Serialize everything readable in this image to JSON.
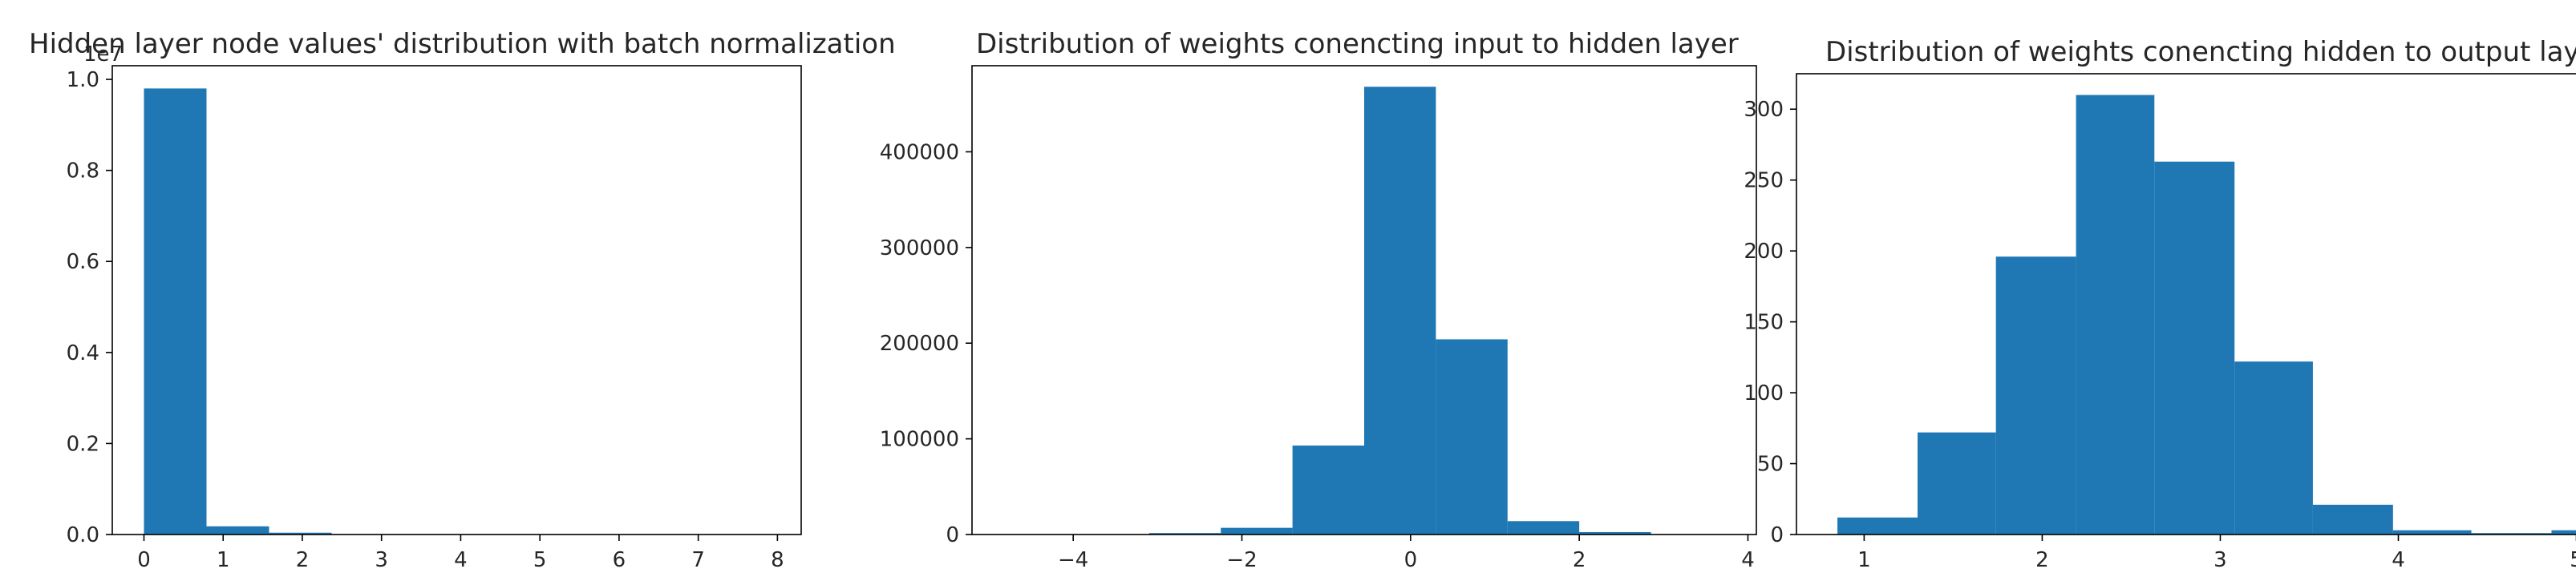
{
  "chart_data": [
    {
      "type": "bar",
      "title": "Hidden layer node values' distribution with batch normalization",
      "xlabel": "",
      "ylabel": "",
      "scale_label": "1e7",
      "bins": [
        {
          "x0": 0.0,
          "x1": 0.79,
          "value": 0.98
        },
        {
          "x0": 0.79,
          "x1": 1.58,
          "value": 0.018
        },
        {
          "x0": 1.58,
          "x1": 2.37,
          "value": 0.004
        },
        {
          "x0": 2.37,
          "x1": 3.16,
          "value": 0.001
        },
        {
          "x0": 3.16,
          "x1": 3.95,
          "value": 0.0005
        },
        {
          "x0": 3.95,
          "x1": 4.74,
          "value": 0.0002
        },
        {
          "x0": 4.74,
          "x1": 5.53,
          "value": 0.0001
        },
        {
          "x0": 5.53,
          "x1": 6.32,
          "value": 0.0001
        },
        {
          "x0": 6.32,
          "x1": 7.11,
          "value": 5e-05
        },
        {
          "x0": 7.11,
          "x1": 7.9,
          "value": 3e-05
        }
      ],
      "xlim": [
        -0.4,
        8.3
      ],
      "ylim": [
        0,
        1.03
      ],
      "xticks": [
        0,
        1,
        2,
        3,
        4,
        5,
        6,
        7,
        8
      ],
      "yticks": [
        0.0,
        0.2,
        0.4,
        0.6,
        0.8,
        1.0
      ],
      "ytick_labels": [
        "0.0",
        "0.2",
        "0.4",
        "0.6",
        "0.8",
        "1.0"
      ],
      "color": "#1f77b4",
      "grid": false
    },
    {
      "type": "bar",
      "title": "Distribution of weights conencting input to hidden layer",
      "xlabel": "",
      "ylabel": "",
      "bins": [
        {
          "x0": -4.8,
          "x1": -3.95,
          "value": 50
        },
        {
          "x0": -3.95,
          "x1": -3.1,
          "value": 300
        },
        {
          "x0": -3.1,
          "x1": -2.25,
          "value": 1500
        },
        {
          "x0": -2.25,
          "x1": -1.4,
          "value": 7000
        },
        {
          "x0": -1.4,
          "x1": -0.55,
          "value": 93000
        },
        {
          "x0": -0.55,
          "x1": 0.3,
          "value": 468000
        },
        {
          "x0": 0.3,
          "x1": 1.15,
          "value": 204000
        },
        {
          "x0": 1.15,
          "x1": 2.0,
          "value": 14000
        },
        {
          "x0": 2.0,
          "x1": 2.85,
          "value": 2500
        },
        {
          "x0": 2.85,
          "x1": 3.7,
          "value": 200
        }
      ],
      "xlim": [
        -5.2,
        4.1
      ],
      "ylim": [
        0,
        490000
      ],
      "xticks": [
        -4,
        -2,
        0,
        2,
        4
      ],
      "xtick_labels": [
        "−4",
        "−2",
        "0",
        "2",
        "4"
      ],
      "yticks": [
        0,
        100000,
        200000,
        300000,
        400000
      ],
      "ytick_labels": [
        "0",
        "100000",
        "200000",
        "300000",
        "400000"
      ],
      "color": "#1f77b4",
      "grid": false
    },
    {
      "type": "bar",
      "title": "Distribution of weights conencting hidden to output layer",
      "xlabel": "",
      "ylabel": "",
      "bins": [
        {
          "x0": 0.85,
          "x1": 1.3,
          "value": 12
        },
        {
          "x0": 1.3,
          "x1": 1.74,
          "value": 72
        },
        {
          "x0": 1.74,
          "x1": 2.19,
          "value": 196
        },
        {
          "x0": 2.19,
          "x1": 2.63,
          "value": 310
        },
        {
          "x0": 2.63,
          "x1": 3.08,
          "value": 263
        },
        {
          "x0": 3.08,
          "x1": 3.52,
          "value": 122
        },
        {
          "x0": 3.52,
          "x1": 3.97,
          "value": 21
        },
        {
          "x0": 3.97,
          "x1": 4.41,
          "value": 3
        },
        {
          "x0": 4.41,
          "x1": 4.86,
          "value": 1
        },
        {
          "x0": 4.86,
          "x1": 5.3,
          "value": 3
        }
      ],
      "xlim": [
        0.62,
        5.52
      ],
      "ylim": [
        0,
        325
      ],
      "xticks": [
        1,
        2,
        3,
        4,
        5
      ],
      "yticks": [
        0,
        50,
        100,
        150,
        200,
        250,
        300
      ],
      "color": "#1f77b4",
      "grid": false
    }
  ]
}
